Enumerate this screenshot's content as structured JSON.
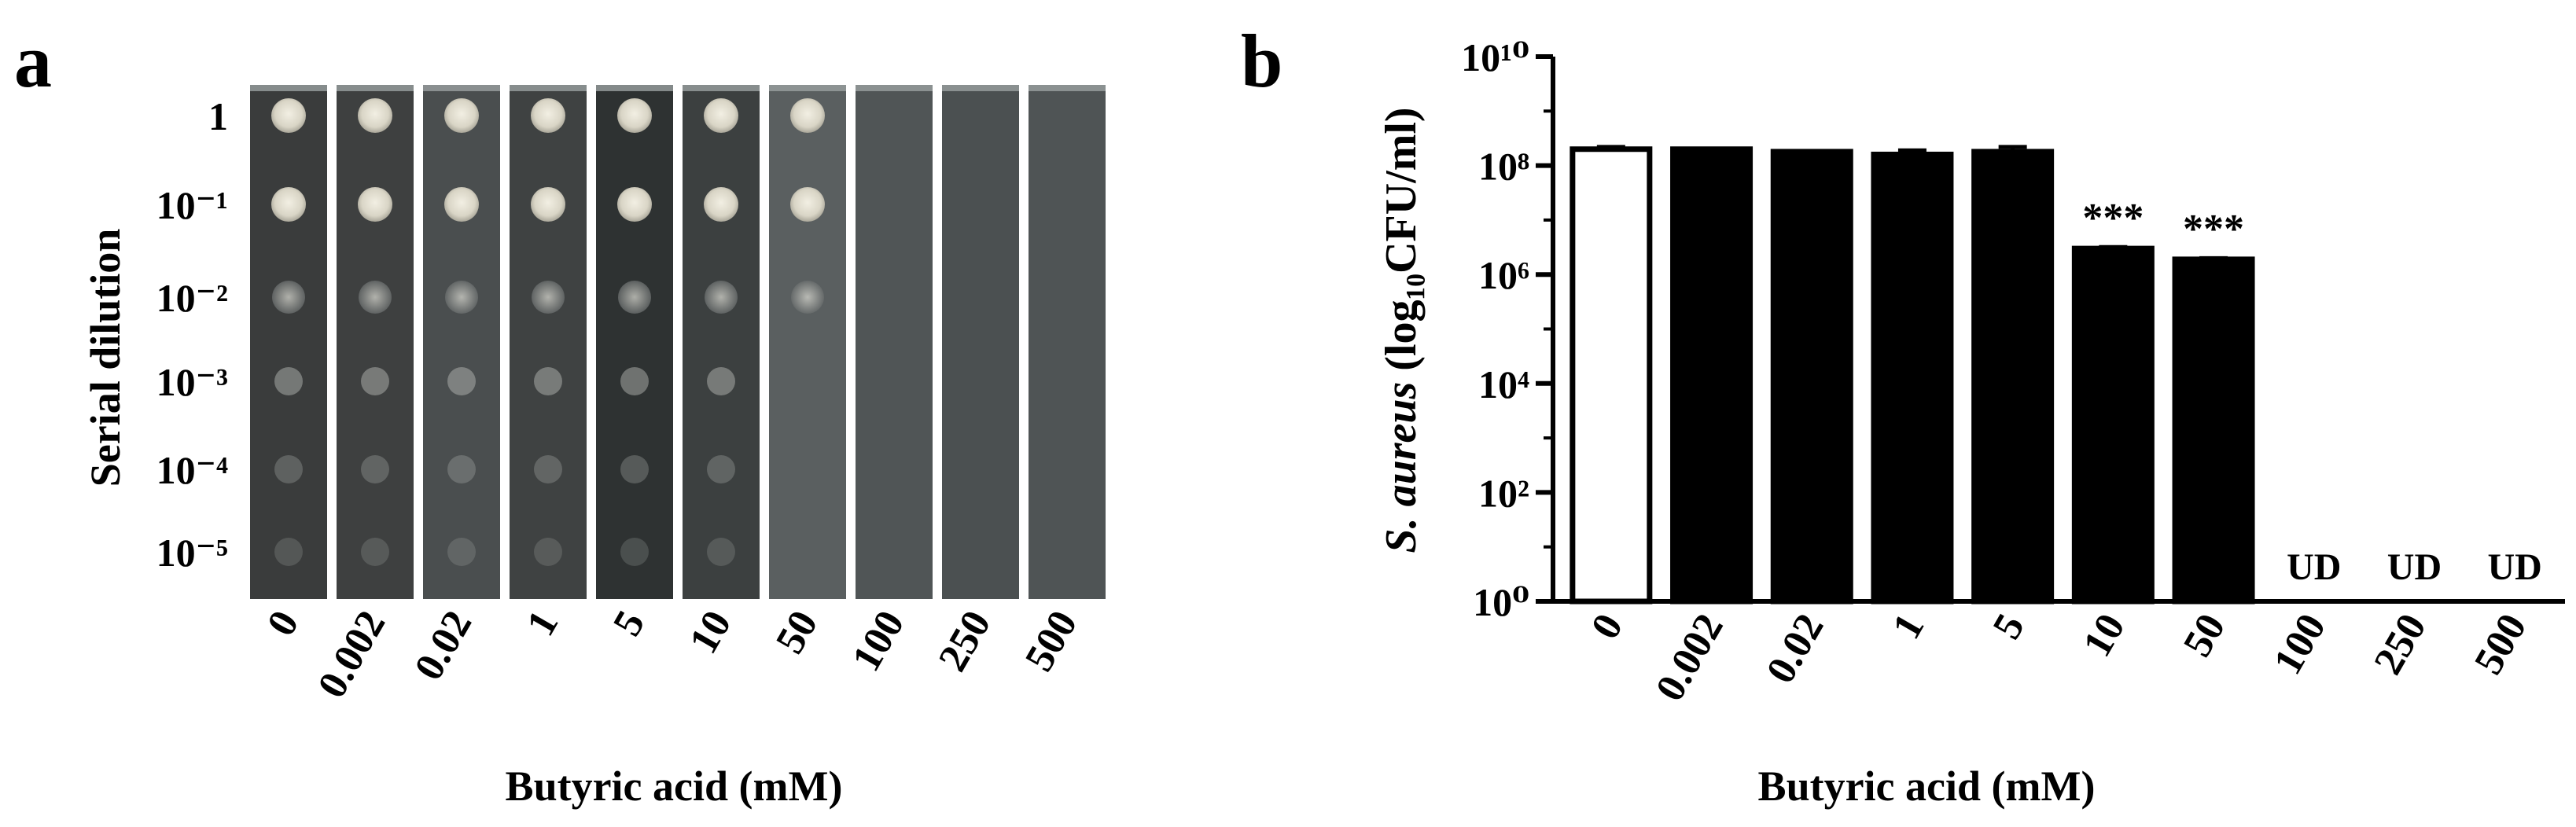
{
  "panel_a": {
    "letter": "a",
    "ylabel": "Serial dilution",
    "dilution_labels": [
      "1",
      "10⁻¹",
      "10⁻²",
      "10⁻³",
      "10⁻⁴",
      "10⁻⁵"
    ],
    "concentrations": [
      "0",
      "0.002",
      "0.02",
      "1",
      "5",
      "10",
      "50",
      "100",
      "250",
      "500"
    ],
    "xlabel": "Butyric acid (mM)",
    "plate_colors": [
      "#3a3c3c",
      "#3e4040",
      "#4a4e4f",
      "#3f4242",
      "#2e3232",
      "#3c4040",
      "#5a5f60",
      "#505556",
      "#4b5051",
      "#4f5455"
    ],
    "visible_spot_rows": [
      6,
      6,
      6,
      6,
      6,
      6,
      3,
      0,
      0,
      0
    ]
  },
  "panel_b": {
    "letter": "b",
    "xlabel": "Butyric acid (mM)"
  },
  "chart_data": {
    "type": "bar",
    "categories": [
      "0",
      "0.002",
      "0.02",
      "1",
      "5",
      "10",
      "50",
      "100",
      "250",
      "500"
    ],
    "series": [
      {
        "values": [
          200000000,
          200000000,
          180000000,
          160000000,
          180000000,
          3000000,
          1900000,
          null,
          null,
          null
        ]
      }
    ],
    "errors": [
      20000000,
      0,
      0,
      30000000,
      40000000,
      200000,
      100000,
      null,
      null,
      null
    ],
    "bar_fill": [
      "#ffffff",
      "#000000",
      "#000000",
      "#000000",
      "#000000",
      "#000000",
      "#000000",
      null,
      null,
      null
    ],
    "annotations": [
      "",
      "",
      "",
      "",
      "",
      "***",
      "***",
      "UD",
      "UD",
      "UD"
    ],
    "yscale": "log",
    "ylim": [
      1,
      10000000000
    ],
    "ytick_labels": [
      "10⁰",
      "10²",
      "10⁴",
      "10⁶",
      "10⁸",
      "10¹⁰"
    ],
    "ylabel_italic": "S. aureus",
    "ylabel_rest": " (log₁₀CFU/ml)",
    "xlabel": "Butyric acid (mM)",
    "grid": false
  }
}
